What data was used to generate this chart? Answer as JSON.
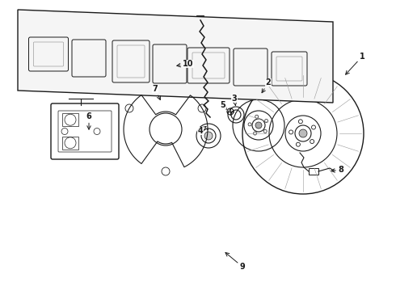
{
  "bg_color": "#ffffff",
  "line_color": "#1a1a1a",
  "figsize": [
    4.9,
    3.6
  ],
  "dpi": 100,
  "callouts": [
    [
      "1",
      448,
      290,
      425,
      265
    ],
    [
      "2",
      332,
      258,
      322,
      242
    ],
    [
      "3",
      290,
      238,
      292,
      226
    ],
    [
      "4",
      248,
      198,
      258,
      206
    ],
    [
      "5",
      276,
      230,
      281,
      224
    ],
    [
      "6",
      110,
      216,
      110,
      196
    ],
    [
      "7",
      192,
      250,
      200,
      233
    ],
    [
      "8",
      422,
      150,
      406,
      148
    ],
    [
      "9",
      300,
      30,
      276,
      50
    ],
    [
      "10",
      233,
      281,
      215,
      278
    ]
  ]
}
